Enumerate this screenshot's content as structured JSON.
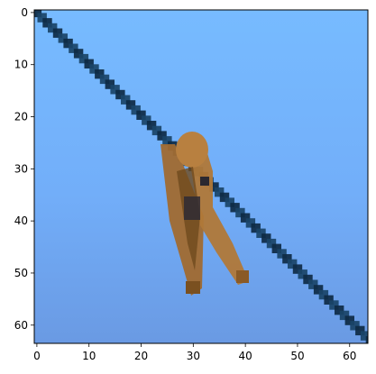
{
  "image": {
    "description_subject": "clothespin-on-wire",
    "sky_color_top": "#74b8ff",
    "sky_color_bottom": "#6a9be6",
    "wire_color": "#10304a",
    "clip_color_main": "#a87035",
    "clip_color_shadow": "#6a4418",
    "clip_color_dark": "#2a2830"
  },
  "axes": {
    "x": {
      "ticks": [
        "0",
        "10",
        "20",
        "30",
        "40",
        "50",
        "60"
      ],
      "range": [
        -0.5,
        63.5
      ]
    },
    "y": {
      "ticks": [
        "0",
        "10",
        "20",
        "30",
        "40",
        "50",
        "60"
      ],
      "range": [
        -0.5,
        63.5
      ]
    }
  }
}
